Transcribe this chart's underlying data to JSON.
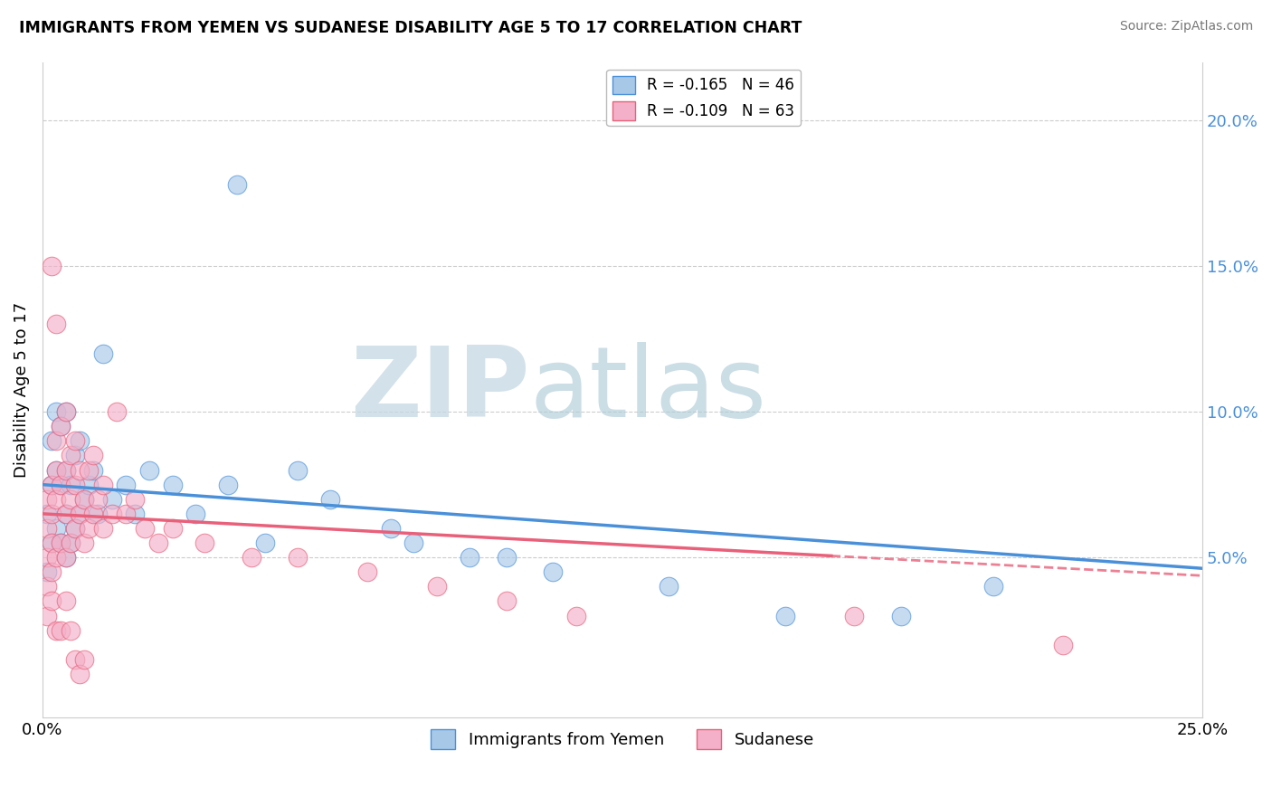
{
  "title": "IMMIGRANTS FROM YEMEN VS SUDANESE DISABILITY AGE 5 TO 17 CORRELATION CHART",
  "source": "Source: ZipAtlas.com",
  "ylabel": "Disability Age 5 to 17",
  "xlim": [
    0,
    0.25
  ],
  "ylim": [
    -0.005,
    0.22
  ],
  "yticks_right": [
    0.05,
    0.1,
    0.15,
    0.2
  ],
  "ytick_labels_right": [
    "5.0%",
    "10.0%",
    "15.0%",
    "20.0%"
  ],
  "legend_entry1": "R = -0.165   N = 46",
  "legend_entry2": "R = -0.109   N = 63",
  "color_blue": "#a8c8e8",
  "color_pink": "#f4b0c8",
  "color_blue_line": "#4a90d9",
  "color_pink_line": "#e8607a",
  "watermark_zip": "ZIP",
  "watermark_atlas": "atlas",
  "watermark_color_zip": "#c8d8e8",
  "watermark_color_atlas": "#b0c8d8",
  "legend_label1": "Immigrants from Yemen",
  "legend_label2": "Sudanese",
  "blue_x": [
    0.001,
    0.001,
    0.002,
    0.002,
    0.002,
    0.003,
    0.003,
    0.003,
    0.004,
    0.004,
    0.004,
    0.005,
    0.005,
    0.005,
    0.005,
    0.006,
    0.006,
    0.007,
    0.007,
    0.008,
    0.008,
    0.009,
    0.01,
    0.011,
    0.012,
    0.013,
    0.015,
    0.018,
    0.02,
    0.023,
    0.028,
    0.033,
    0.04,
    0.048,
    0.062,
    0.075,
    0.092,
    0.11,
    0.135,
    0.16,
    0.185,
    0.205,
    0.08,
    0.1,
    0.055,
    0.042
  ],
  "blue_y": [
    0.045,
    0.065,
    0.055,
    0.075,
    0.09,
    0.06,
    0.08,
    0.1,
    0.055,
    0.075,
    0.095,
    0.05,
    0.065,
    0.08,
    0.1,
    0.055,
    0.075,
    0.06,
    0.085,
    0.065,
    0.09,
    0.07,
    0.075,
    0.08,
    0.065,
    0.12,
    0.07,
    0.075,
    0.065,
    0.08,
    0.075,
    0.065,
    0.075,
    0.055,
    0.07,
    0.06,
    0.05,
    0.045,
    0.04,
    0.03,
    0.03,
    0.04,
    0.055,
    0.05,
    0.08,
    0.178
  ],
  "pink_x": [
    0.001,
    0.001,
    0.001,
    0.001,
    0.002,
    0.002,
    0.002,
    0.002,
    0.003,
    0.003,
    0.003,
    0.003,
    0.004,
    0.004,
    0.004,
    0.005,
    0.005,
    0.005,
    0.005,
    0.006,
    0.006,
    0.006,
    0.007,
    0.007,
    0.007,
    0.008,
    0.008,
    0.009,
    0.009,
    0.01,
    0.01,
    0.011,
    0.011,
    0.012,
    0.013,
    0.013,
    0.015,
    0.016,
    0.018,
    0.02,
    0.022,
    0.025,
    0.028,
    0.035,
    0.045,
    0.055,
    0.07,
    0.085,
    0.1,
    0.115,
    0.001,
    0.002,
    0.003,
    0.004,
    0.005,
    0.006,
    0.007,
    0.008,
    0.009,
    0.175,
    0.002,
    0.003,
    0.22
  ],
  "pink_y": [
    0.06,
    0.04,
    0.07,
    0.05,
    0.055,
    0.075,
    0.045,
    0.065,
    0.05,
    0.07,
    0.08,
    0.09,
    0.055,
    0.075,
    0.095,
    0.05,
    0.065,
    0.08,
    0.1,
    0.055,
    0.07,
    0.085,
    0.06,
    0.075,
    0.09,
    0.065,
    0.08,
    0.055,
    0.07,
    0.06,
    0.08,
    0.065,
    0.085,
    0.07,
    0.06,
    0.075,
    0.065,
    0.1,
    0.065,
    0.07,
    0.06,
    0.055,
    0.06,
    0.055,
    0.05,
    0.05,
    0.045,
    0.04,
    0.035,
    0.03,
    0.03,
    0.035,
    0.025,
    0.025,
    0.035,
    0.025,
    0.015,
    0.01,
    0.015,
    0.03,
    0.15,
    0.13,
    0.02
  ]
}
